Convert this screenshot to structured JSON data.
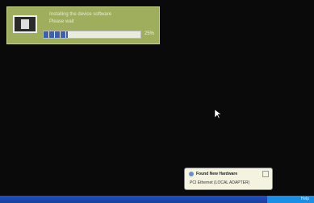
{
  "popup": {
    "title": "Installing the device software",
    "subtitle": "Please wait",
    "progress": {
      "value": 25,
      "label": "25%"
    }
  },
  "balloon": {
    "title": "Found New Hardware",
    "text": "PCI Ethernet (LOCAL ADAPTER)"
  },
  "taskbar": {
    "tray_label": "Help"
  }
}
